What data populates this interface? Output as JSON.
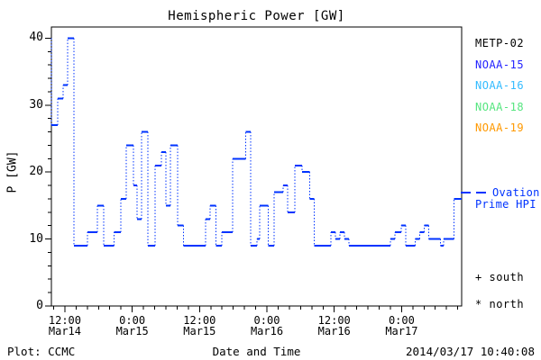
{
  "chart": {
    "title": "Hemispheric Power [GW]",
    "xlabel": "Date and Time",
    "ylabel": "P [GW]"
  },
  "chart_data": {
    "type": "line",
    "subtype": "step",
    "style_note": "solid horizontal step segments with dotted vertical connectors",
    "title": "Hemispheric Power [GW]",
    "xlabel": "Date and Time",
    "ylabel": "P [GW]",
    "ylim": [
      0,
      40
    ],
    "y_major_tick_interval": 10,
    "y_minor_tick_interval": 2,
    "y_major_tick_labels": [
      "0",
      "10",
      "20",
      "30",
      "40"
    ],
    "x_range_hours": [
      9.6,
      82.7
    ],
    "x_hours_reference": "hours since Mar14 00:00 (estimated from axis)",
    "x_minor_tick_interval_hours": 2,
    "x_major_ticks": [
      {
        "hours": 12,
        "time": "12:00",
        "date": "Mar14"
      },
      {
        "hours": 24,
        "time": "0:00",
        "date": "Mar15"
      },
      {
        "hours": 36,
        "time": "12:00",
        "date": "Mar15"
      },
      {
        "hours": 48,
        "time": "0:00",
        "date": "Mar16"
      },
      {
        "hours": 60,
        "time": "12:00",
        "date": "Mar16"
      },
      {
        "hours": 72,
        "time": "0:00",
        "date": "Mar17"
      }
    ],
    "grid": false,
    "legend_position": "right-outside",
    "legend": [
      {
        "label": "METP-02",
        "color": "#000000"
      },
      {
        "label": "NOAA-15",
        "color": "#2222ff"
      },
      {
        "label": "NOAA-16",
        "color": "#33bbff"
      },
      {
        "label": "NOAA-18",
        "color": "#55e57f"
      },
      {
        "label": "NOAA-19",
        "color": "#ff9900"
      }
    ],
    "series": [
      {
        "name": "Ovation Prime HPI",
        "color": "#0033ff",
        "steps_hours_value": [
          [
            9.6,
            40
          ],
          [
            9.6,
            27
          ],
          [
            10.7,
            31
          ],
          [
            11.7,
            33
          ],
          [
            12.5,
            40
          ],
          [
            13.6,
            9
          ],
          [
            16.0,
            11
          ],
          [
            17.8,
            15
          ],
          [
            18.9,
            9
          ],
          [
            20.8,
            11
          ],
          [
            22.0,
            16
          ],
          [
            22.9,
            24
          ],
          [
            24.2,
            18
          ],
          [
            24.9,
            13
          ],
          [
            25.7,
            26
          ],
          [
            26.8,
            9
          ],
          [
            28.1,
            21
          ],
          [
            29.2,
            23
          ],
          [
            30.0,
            15
          ],
          [
            30.8,
            24
          ],
          [
            32.1,
            12
          ],
          [
            33.1,
            9
          ],
          [
            37.1,
            13
          ],
          [
            37.9,
            15
          ],
          [
            38.9,
            9
          ],
          [
            40.0,
            11
          ],
          [
            41.9,
            22
          ],
          [
            44.2,
            26
          ],
          [
            45.1,
            9
          ],
          [
            46.2,
            10
          ],
          [
            46.7,
            15
          ],
          [
            48.2,
            9
          ],
          [
            49.3,
            17
          ],
          [
            50.9,
            18
          ],
          [
            51.7,
            14
          ],
          [
            53.0,
            21
          ],
          [
            54.3,
            20
          ],
          [
            55.6,
            16
          ],
          [
            56.4,
            9
          ],
          [
            59.4,
            11
          ],
          [
            60.2,
            10
          ],
          [
            61.0,
            11
          ],
          [
            61.8,
            10
          ],
          [
            62.6,
            9
          ],
          [
            70.0,
            10
          ],
          [
            70.8,
            11
          ],
          [
            71.9,
            12
          ],
          [
            72.7,
            9
          ],
          [
            74.4,
            10
          ],
          [
            75.2,
            11
          ],
          [
            76.0,
            12
          ],
          [
            76.8,
            10
          ],
          [
            78.9,
            9
          ],
          [
            79.5,
            10
          ],
          [
            81.3,
            16
          ]
        ]
      }
    ]
  },
  "annotations": {
    "ovation_line1": "Ovation",
    "ovation_line2": "Prime HPI",
    "ovation_color": "#0033ff",
    "south_symbol": "+",
    "south_label": "south",
    "north_symbol": "*",
    "north_label": "north"
  },
  "footer": {
    "credit": "Plot: CCMC",
    "timestamp": "2014/03/17 10:40:08"
  },
  "colors": {
    "background": "#ffffff",
    "axis": "#000000",
    "line": "#0033ff"
  }
}
